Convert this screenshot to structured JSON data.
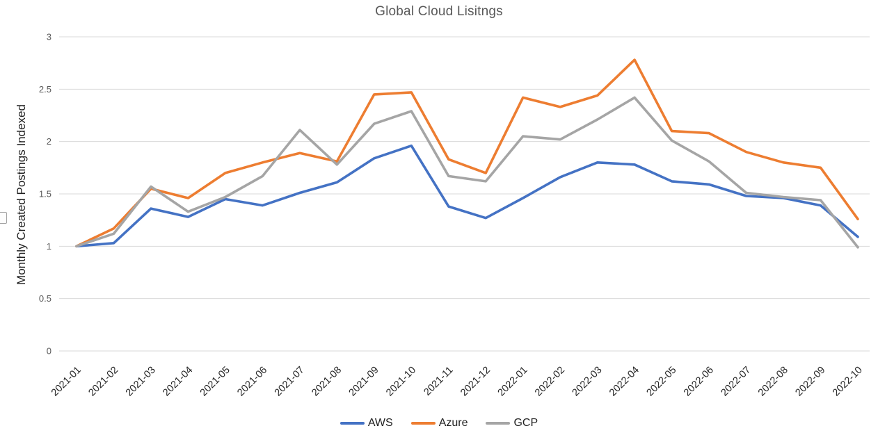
{
  "chart": {
    "grid_color": "#d9d9d9",
    "tick_label_color": "#595959",
    "axis_label_color": "#262626",
    "title_color": "#595959"
  },
  "chart_data": {
    "type": "line",
    "title": "Global Cloud Lisitngs",
    "xlabel": "",
    "ylabel": "Monthly Created Postings Indexed",
    "categories": [
      "2021-01",
      "2021-02",
      "2021-03",
      "2021-04",
      "2021-05",
      "2021-06",
      "2021-07",
      "2021-08",
      "2021-09",
      "2021-10",
      "2021-11",
      "2021-12",
      "2022-01",
      "2022-02",
      "2022-03",
      "2022-04",
      "2022-05",
      "2022-06",
      "2022-07",
      "2022-08",
      "2022-09",
      "2022-10"
    ],
    "series": [
      {
        "name": "AWS",
        "color": "#4472C4",
        "values": [
          1.0,
          1.03,
          1.36,
          1.28,
          1.45,
          1.39,
          1.51,
          1.61,
          1.84,
          1.96,
          1.38,
          1.27,
          1.46,
          1.66,
          1.8,
          1.78,
          1.62,
          1.59,
          1.48,
          1.46,
          1.39,
          1.09
        ]
      },
      {
        "name": "Azure",
        "color": "#ED7D31",
        "values": [
          1.0,
          1.17,
          1.55,
          1.46,
          1.7,
          1.8,
          1.89,
          1.81,
          2.45,
          2.47,
          1.83,
          1.7,
          2.42,
          2.33,
          2.44,
          2.78,
          2.1,
          2.08,
          1.9,
          1.8,
          1.75,
          1.26
        ]
      },
      {
        "name": "GCP",
        "color": "#A5A5A5",
        "values": [
          1.0,
          1.12,
          1.57,
          1.33,
          1.47,
          1.67,
          2.11,
          1.78,
          2.17,
          2.29,
          1.67,
          1.62,
          2.05,
          2.02,
          2.21,
          2.42,
          2.01,
          1.81,
          1.51,
          1.47,
          1.44,
          0.99
        ]
      }
    ],
    "yticks": [
      0,
      0.5,
      1,
      1.5,
      2,
      2.5,
      3
    ],
    "ylim": [
      0,
      3
    ],
    "grid": true,
    "legend_position": "bottom"
  }
}
